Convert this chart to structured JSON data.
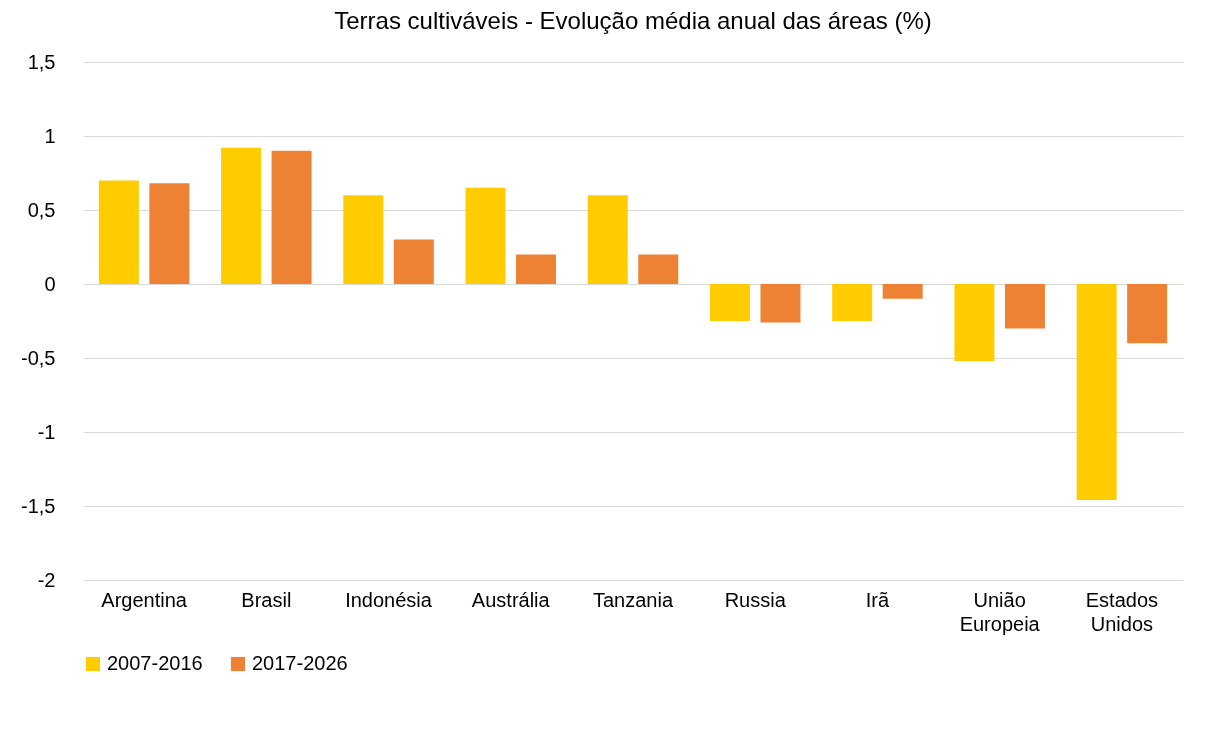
{
  "chart_data": {
    "type": "bar",
    "title": "Terras cultiváveis - Evolução média anual das áreas (%)",
    "categories": [
      "Argentina",
      "Brasil",
      "Indonésia",
      "Austrália",
      "Tanzania",
      "Russia",
      "Irã",
      "União Europeia",
      "Estados Unidos"
    ],
    "series": [
      {
        "name": "2007-2016",
        "color": "#ffcc00",
        "values": [
          0.7,
          0.92,
          0.6,
          0.65,
          0.6,
          -0.25,
          -0.25,
          -0.52,
          -1.46
        ]
      },
      {
        "name": "2017-2026",
        "color": "#ee8234",
        "values": [
          0.68,
          0.9,
          0.3,
          0.2,
          0.2,
          -0.26,
          -0.1,
          -0.3,
          -0.4
        ]
      }
    ],
    "ylim": [
      -2,
      1.5
    ],
    "yticks": [
      {
        "value": -2,
        "label": "-2"
      },
      {
        "value": -1.5,
        "label": "-1,5"
      },
      {
        "value": -1,
        "label": "-1"
      },
      {
        "value": -0.5,
        "label": "-0,5"
      },
      {
        "value": 0,
        "label": "0"
      },
      {
        "value": 0.5,
        "label": "0,5"
      },
      {
        "value": 1,
        "label": "1"
      },
      {
        "value": 1.5,
        "label": "1,5"
      }
    ],
    "grid": "y",
    "legend": "bottom"
  }
}
